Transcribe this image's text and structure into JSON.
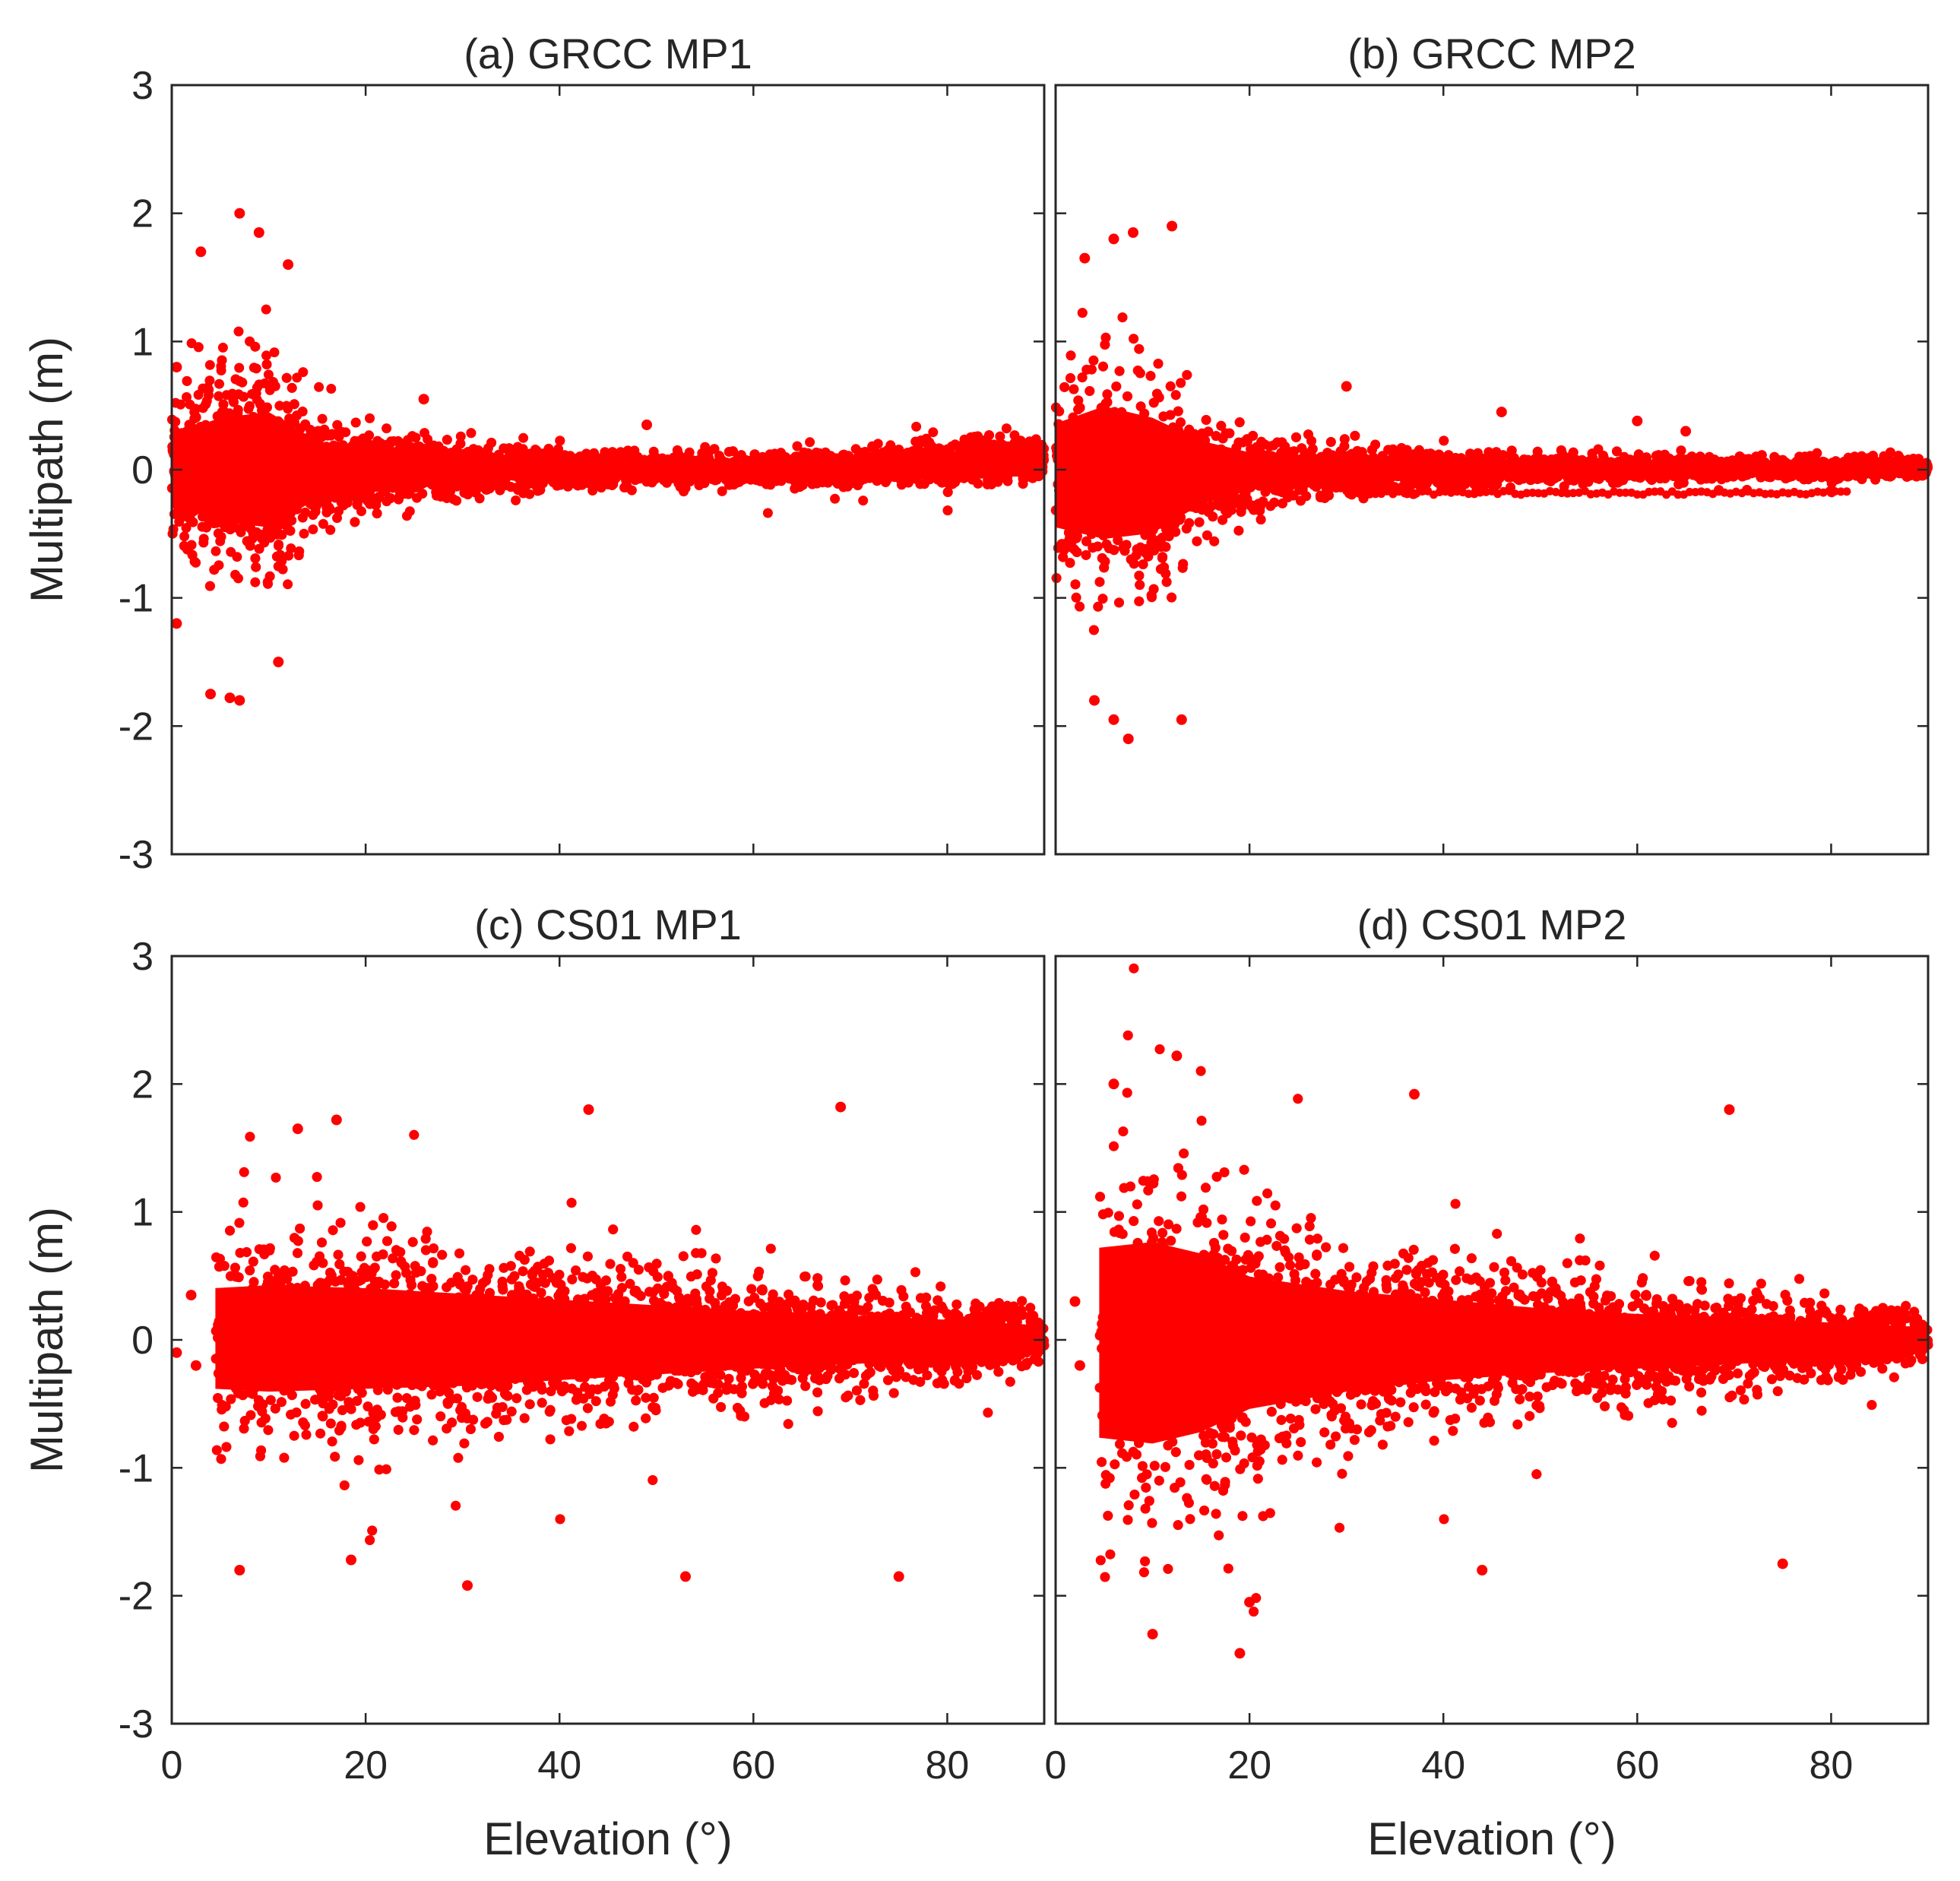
{
  "chart_data": [
    {
      "type": "scatter",
      "title": "(a) GRCC MP1",
      "xlabel": "",
      "ylabel": "Multipath (m)",
      "xlim": [
        0,
        90
      ],
      "ylim": [
        -3,
        3
      ],
      "xticks": [
        0,
        20,
        40,
        60,
        80
      ],
      "yticks": [
        -3,
        -2,
        -1,
        0,
        1,
        2,
        3
      ],
      "show_xtick_labels": false,
      "show_ytick_labels": true,
      "color": "#ff0000",
      "envelope_points": [
        {
          "x": 0,
          "y_upper": 0.6,
          "y_lower": -0.6
        },
        {
          "x": 5,
          "y_upper": 0.9,
          "y_lower": -0.9
        },
        {
          "x": 10,
          "y_upper": 1.0,
          "y_lower": -1.0
        },
        {
          "x": 15,
          "y_upper": 0.5,
          "y_lower": -0.5
        },
        {
          "x": 20,
          "y_upper": 0.3,
          "y_lower": -0.3
        },
        {
          "x": 30,
          "y_upper": 0.22,
          "y_lower": -0.22
        },
        {
          "x": 40,
          "y_upper": 0.15,
          "y_lower": -0.15
        },
        {
          "x": 50,
          "y_upper": 0.12,
          "y_lower": -0.12
        },
        {
          "x": 60,
          "y_upper": 0.12,
          "y_lower": -0.12
        },
        {
          "x": 70,
          "y_upper": 0.15,
          "y_lower": -0.12
        },
        {
          "x": 80,
          "y_upper": 0.25,
          "y_lower": -0.12
        },
        {
          "x": 90,
          "y_upper": 0.25,
          "y_lower": -0.12
        }
      ],
      "outliers": [
        {
          "x": 7,
          "y": 2.0
        },
        {
          "x": 9,
          "y": 1.85
        },
        {
          "x": 3,
          "y": 1.7
        },
        {
          "x": 12,
          "y": 1.6
        },
        {
          "x": 4,
          "y": -1.75
        },
        {
          "x": 7,
          "y": -1.8
        },
        {
          "x": 6,
          "y": -1.78
        },
        {
          "x": 11,
          "y": -1.5
        },
        {
          "x": 0.5,
          "y": -1.2
        },
        {
          "x": 0.5,
          "y": 0.8
        },
        {
          "x": 26,
          "y": 0.55
        },
        {
          "x": 49,
          "y": 0.35
        }
      ]
    },
    {
      "type": "scatter",
      "title": "(b) GRCC MP2",
      "xlabel": "",
      "ylabel": "",
      "xlim": [
        0,
        90
      ],
      "ylim": [
        -3,
        3
      ],
      "xticks": [
        0,
        20,
        40,
        60,
        80
      ],
      "yticks": [
        -3,
        -2,
        -1,
        0,
        1,
        2,
        3
      ],
      "show_xtick_labels": false,
      "show_ytick_labels": false,
      "color": "#ff0000",
      "envelope_points": [
        {
          "x": 0,
          "y_upper": 0.8,
          "y_lower": -1.0
        },
        {
          "x": 5,
          "y_upper": 1.1,
          "y_lower": -1.2
        },
        {
          "x": 10,
          "y_upper": 0.9,
          "y_lower": -1.1
        },
        {
          "x": 15,
          "y_upper": 0.5,
          "y_lower": -0.6
        },
        {
          "x": 20,
          "y_upper": 0.3,
          "y_lower": -0.35
        },
        {
          "x": 30,
          "y_upper": 0.2,
          "y_lower": -0.22
        },
        {
          "x": 40,
          "y_upper": 0.15,
          "y_lower": -0.15
        },
        {
          "x": 50,
          "y_upper": 0.12,
          "y_lower": -0.12
        },
        {
          "x": 60,
          "y_upper": 0.12,
          "y_lower": -0.1
        },
        {
          "x": 70,
          "y_upper": 0.1,
          "y_lower": -0.08
        },
        {
          "x": 80,
          "y_upper": 0.1,
          "y_lower": -0.08
        },
        {
          "x": 90,
          "y_upper": 0.1,
          "y_lower": -0.08
        }
      ],
      "outliers": [
        {
          "x": 6,
          "y": 1.8
        },
        {
          "x": 8,
          "y": 1.85
        },
        {
          "x": 12,
          "y": 1.9
        },
        {
          "x": 3,
          "y": 1.65
        },
        {
          "x": 7.5,
          "y": -2.1
        },
        {
          "x": 6,
          "y": -1.95
        },
        {
          "x": 13,
          "y": -1.95
        },
        {
          "x": 4,
          "y": -1.8
        },
        {
          "x": 30,
          "y": 0.65
        },
        {
          "x": 46,
          "y": 0.45
        },
        {
          "x": 60,
          "y": 0.38
        },
        {
          "x": 65,
          "y": 0.3
        }
      ],
      "secondary_band": {
        "x_start": 30,
        "x_end": 82,
        "y": -0.18
      }
    },
    {
      "type": "scatter",
      "title": "(c) CS01 MP1",
      "xlabel": "Elevation (°)",
      "ylabel": "Multipath (m)",
      "xlim": [
        0,
        90
      ],
      "ylim": [
        -3,
        3
      ],
      "xticks": [
        0,
        20,
        40,
        60,
        80
      ],
      "yticks": [
        -3,
        -2,
        -1,
        0,
        1,
        2,
        3
      ],
      "show_xtick_labels": true,
      "show_ytick_labels": true,
      "color": "#ff0000",
      "envelope_points": [
        {
          "x": 4.5,
          "y_upper": 0.9,
          "y_lower": -0.85
        },
        {
          "x": 10,
          "y_upper": 0.95,
          "y_lower": -0.9
        },
        {
          "x": 20,
          "y_upper": 0.9,
          "y_lower": -0.85
        },
        {
          "x": 30,
          "y_upper": 0.8,
          "y_lower": -0.8
        },
        {
          "x": 40,
          "y_upper": 0.7,
          "y_lower": -0.7
        },
        {
          "x": 50,
          "y_upper": 0.6,
          "y_lower": -0.6
        },
        {
          "x": 60,
          "y_upper": 0.5,
          "y_lower": -0.5
        },
        {
          "x": 70,
          "y_upper": 0.42,
          "y_lower": -0.42
        },
        {
          "x": 80,
          "y_upper": 0.35,
          "y_lower": -0.35
        },
        {
          "x": 90,
          "y_upper": 0.25,
          "y_lower": -0.25
        }
      ],
      "outliers": [
        {
          "x": 17,
          "y": 1.72
        },
        {
          "x": 43,
          "y": 1.8
        },
        {
          "x": 69,
          "y": 1.82
        },
        {
          "x": 13,
          "y": 1.65
        },
        {
          "x": 30.5,
          "y": -1.92
        },
        {
          "x": 53,
          "y": -1.85
        },
        {
          "x": 75,
          "y": -1.85
        },
        {
          "x": 7,
          "y": -1.8
        },
        {
          "x": 18.5,
          "y": -1.72
        },
        {
          "x": 2,
          "y": 0.35
        },
        {
          "x": 2.5,
          "y": -0.2
        },
        {
          "x": 0.5,
          "y": -0.1
        }
      ]
    },
    {
      "type": "scatter",
      "title": "(d) CS01 MP2",
      "xlabel": "Elevation (°)",
      "ylabel": "",
      "xlim": [
        0,
        90
      ],
      "ylim": [
        -3,
        3
      ],
      "xticks": [
        0,
        20,
        40,
        60,
        80
      ],
      "yticks": [
        -3,
        -2,
        -1,
        0,
        1,
        2,
        3
      ],
      "show_xtick_labels": true,
      "show_ytick_labels": false,
      "color": "#ff0000",
      "envelope_points": [
        {
          "x": 4.5,
          "y_upper": 1.6,
          "y_lower": -1.7
        },
        {
          "x": 10,
          "y_upper": 1.7,
          "y_lower": -1.8
        },
        {
          "x": 15,
          "y_upper": 1.5,
          "y_lower": -1.6
        },
        {
          "x": 20,
          "y_upper": 1.1,
          "y_lower": -1.2
        },
        {
          "x": 30,
          "y_upper": 0.85,
          "y_lower": -0.9
        },
        {
          "x": 40,
          "y_upper": 0.7,
          "y_lower": -0.7
        },
        {
          "x": 50,
          "y_upper": 0.55,
          "y_lower": -0.58
        },
        {
          "x": 60,
          "y_upper": 0.45,
          "y_lower": -0.5
        },
        {
          "x": 70,
          "y_upper": 0.4,
          "y_lower": -0.42
        },
        {
          "x": 80,
          "y_upper": 0.3,
          "y_lower": -0.32
        },
        {
          "x": 90,
          "y_upper": 0.22,
          "y_lower": -0.22
        }
      ],
      "outliers": [
        {
          "x": 12.5,
          "y": 2.22
        },
        {
          "x": 6,
          "y": 2.0
        },
        {
          "x": 37,
          "y": 1.92
        },
        {
          "x": 69.5,
          "y": 1.8
        },
        {
          "x": 19,
          "y": -2.45
        },
        {
          "x": 10,
          "y": -2.3
        },
        {
          "x": 20,
          "y": -2.05
        },
        {
          "x": 44,
          "y": -1.8
        },
        {
          "x": 75,
          "y": -1.75
        },
        {
          "x": 2,
          "y": 0.3
        },
        {
          "x": 2.5,
          "y": -0.2
        }
      ]
    }
  ]
}
